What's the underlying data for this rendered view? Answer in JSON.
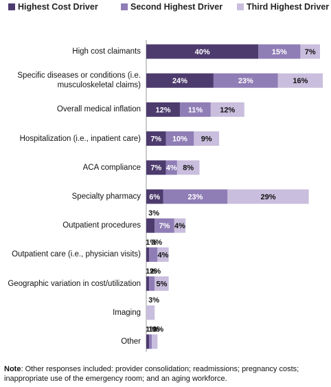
{
  "chart_data": {
    "type": "stacked_bar_horizontal",
    "categories": [
      "High cost claimants",
      "Specific diseases or conditions (i.e.\nmusculoskeletal claims)",
      "Overall medical inflation",
      "Hospitalization (i.e., inpatient care)",
      "ACA compliance",
      "Specialty pharmacy",
      "Outpatient procedures",
      "Outpatient care (i.e., physician visits)",
      "Geographic variation in cost/utilization",
      "Imaging",
      "Other"
    ],
    "series": [
      {
        "name": "Highest Cost Driver",
        "color": "#4d3b6e",
        "values": [
          40,
          24,
          12,
          7,
          7,
          6,
          3,
          1,
          1,
          null,
          1
        ],
        "value_labels": [
          "40%",
          "24%",
          "12%",
          "7%",
          "7%",
          "6%",
          "3%",
          "1%",
          "1%",
          null,
          "1%"
        ]
      },
      {
        "name": "Second Highest Driver",
        "color": "#8f7db6",
        "values": [
          15,
          23,
          11,
          10,
          4,
          23,
          7,
          3,
          2,
          null,
          1
        ],
        "value_labels": [
          "15%",
          "23%",
          "11%",
          "10%",
          "4%",
          "23%",
          "7%",
          "3%",
          "2%",
          null,
          "1%"
        ]
      },
      {
        "name": "Third Highest Driver",
        "color": "#c9bedd",
        "values": [
          7,
          16,
          12,
          9,
          8,
          29,
          4,
          4,
          5,
          3,
          2
        ],
        "value_labels": [
          "7%",
          "16%",
          "12%",
          "9%",
          "8%",
          "29%",
          "4%",
          "4%",
          "5%",
          "3%",
          "2%"
        ]
      }
    ],
    "note_label": "Note",
    "note": ": Other responses included: provider consolidation; readmissions; pregnancy costs; inappropriate use of the emergency room; and an aging workforce."
  }
}
